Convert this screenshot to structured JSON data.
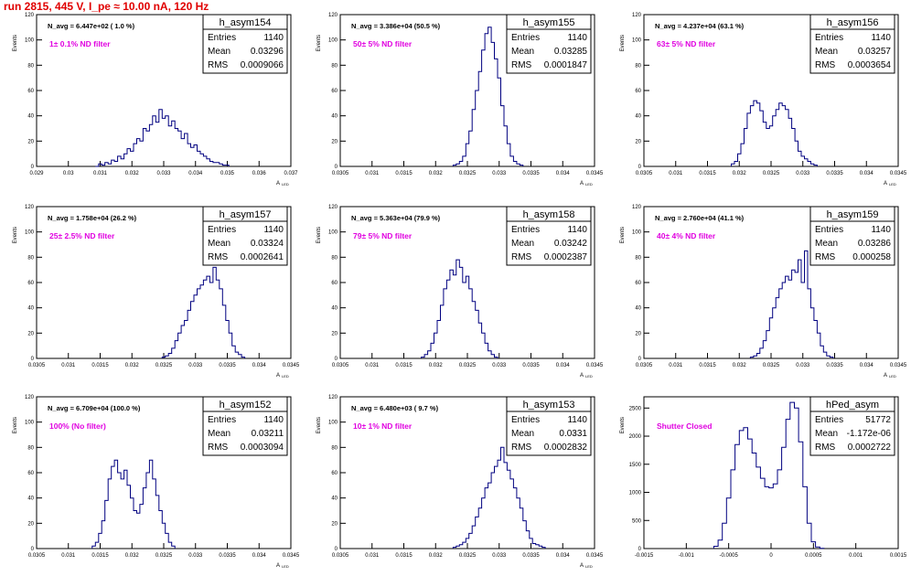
{
  "page_title": "run 2815,   445 V, I_pe ≈ 10.00 nA, 120 Hz",
  "y_axis_title": "Events",
  "stat_labels": {
    "entries": "Entries",
    "mean": "Mean",
    "rms": "RMS"
  },
  "colors": {
    "histogram": "#000080",
    "filter_text": "#e000e0",
    "title": "#e00000"
  },
  "chart_data": [
    {
      "type": "histogram",
      "name": "h_asym154",
      "navg": "N_avg = 6.447e+02 ( 1.0 %)",
      "filter_label": "1± 0.1% ND filter",
      "stats": {
        "entries": "1140",
        "mean": "0.03296",
        "rms": "0.0009066"
      },
      "xlabel": "A_LED",
      "xlim": [
        0.029,
        0.037
      ],
      "ylim": [
        0,
        120
      ],
      "xticks": [
        "0.029",
        "0.03",
        "0.031",
        "0.032",
        "0.033",
        "0.034",
        "0.035",
        "0.036",
        "0.037"
      ],
      "yticks": [
        "0",
        "20",
        "40",
        "60",
        "80",
        "100",
        "120"
      ],
      "x": [
        0.0309,
        0.031,
        0.0311,
        0.0312,
        0.0313,
        0.0314,
        0.0315,
        0.0316,
        0.0317,
        0.0318,
        0.0319,
        0.032,
        0.0321,
        0.0322,
        0.0323,
        0.0324,
        0.0325,
        0.0326,
        0.0327,
        0.0328,
        0.0329,
        0.033,
        0.0331,
        0.0332,
        0.0333,
        0.0334,
        0.0335,
        0.0336,
        0.0337,
        0.0338,
        0.0339,
        0.034,
        0.0341,
        0.0342,
        0.0343,
        0.0344,
        0.0345,
        0.0346,
        0.0347,
        0.0348,
        0.0349,
        0.035
      ],
      "values": [
        0,
        2,
        1,
        3,
        2,
        5,
        4,
        8,
        6,
        10,
        14,
        12,
        18,
        22,
        20,
        30,
        28,
        33,
        40,
        35,
        45,
        38,
        40,
        32,
        36,
        30,
        28,
        22,
        26,
        18,
        15,
        17,
        12,
        10,
        8,
        6,
        4,
        3,
        3,
        2,
        1,
        1
      ]
    },
    {
      "type": "histogram",
      "name": "h_asym155",
      "navg": "N_avg = 3.386e+04 (50.5 %)",
      "filter_label": "50± 5% ND filter",
      "stats": {
        "entries": "1140",
        "mean": "0.03285",
        "rms": "0.0001847"
      },
      "xlabel": "A_LED",
      "xlim": [
        0.0305,
        0.0345
      ],
      "ylim": [
        0,
        120
      ],
      "xticks": [
        "0.0305",
        "0.031",
        "0.0315",
        "0.032",
        "0.0325",
        "0.033",
        "0.0335",
        "0.034",
        "0.0345"
      ],
      "yticks": [
        "0",
        "20",
        "40",
        "60",
        "80",
        "100",
        "120"
      ],
      "x": [
        0.0323,
        0.03235,
        0.0324,
        0.03245,
        0.0325,
        0.03255,
        0.0326,
        0.03265,
        0.0327,
        0.03275,
        0.0328,
        0.03285,
        0.0329,
        0.03295,
        0.033,
        0.03305,
        0.0331,
        0.03315,
        0.0332,
        0.03325,
        0.0333,
        0.03335
      ],
      "values": [
        1,
        2,
        4,
        8,
        18,
        28,
        45,
        60,
        75,
        92,
        105,
        110,
        98,
        85,
        70,
        48,
        32,
        18,
        8,
        4,
        2,
        1
      ]
    },
    {
      "type": "histogram",
      "name": "h_asym156",
      "navg": "N_avg = 4.237e+04 (63.1 %)",
      "filter_label": "63± 5% ND filter",
      "stats": {
        "entries": "1140",
        "mean": "0.03257",
        "rms": "0.0003654"
      },
      "xlabel": "A_LED",
      "xlim": [
        0.0305,
        0.0345
      ],
      "ylim": [
        0,
        120
      ],
      "xticks": [
        "0.0305",
        "0.031",
        "0.0315",
        "0.032",
        "0.0325",
        "0.033",
        "0.0335",
        "0.034",
        "0.0345"
      ],
      "yticks": [
        "0",
        "20",
        "40",
        "60",
        "80",
        "100",
        "120"
      ],
      "x": [
        0.0319,
        0.03195,
        0.032,
        0.03205,
        0.0321,
        0.03215,
        0.0322,
        0.03225,
        0.0323,
        0.03235,
        0.0324,
        0.03245,
        0.0325,
        0.03255,
        0.0326,
        0.03265,
        0.0327,
        0.03275,
        0.0328,
        0.03285,
        0.0329,
        0.03295,
        0.033,
        0.03305,
        0.0331,
        0.03315,
        0.0332
      ],
      "values": [
        2,
        4,
        10,
        18,
        30,
        42,
        48,
        52,
        50,
        44,
        35,
        30,
        32,
        40,
        45,
        50,
        48,
        45,
        38,
        30,
        20,
        12,
        8,
        6,
        4,
        2,
        1
      ]
    },
    {
      "type": "histogram",
      "name": "h_asym157",
      "navg": "N_avg = 1.758e+04 (26.2 %)",
      "filter_label": "25± 2.5% ND filter",
      "stats": {
        "entries": "1140",
        "mean": "0.03324",
        "rms": "0.0002641"
      },
      "xlabel": "A_LED",
      "xlim": [
        0.0305,
        0.0345
      ],
      "ylim": [
        0,
        120
      ],
      "xticks": [
        "0.0305",
        "0.031",
        "0.0315",
        "0.032",
        "0.0325",
        "0.033",
        "0.0335",
        "0.034",
        "0.0345"
      ],
      "yticks": [
        "0",
        "20",
        "40",
        "60",
        "80",
        "100",
        "120"
      ],
      "x": [
        0.0325,
        0.03255,
        0.0326,
        0.03265,
        0.0327,
        0.03275,
        0.0328,
        0.03285,
        0.0329,
        0.03295,
        0.033,
        0.03305,
        0.0331,
        0.03315,
        0.0332,
        0.03325,
        0.0333,
        0.03335,
        0.0334,
        0.03345,
        0.0335,
        0.03355,
        0.0336,
        0.03365,
        0.0337,
        0.03375
      ],
      "values": [
        1,
        2,
        4,
        8,
        14,
        20,
        26,
        30,
        38,
        45,
        50,
        55,
        58,
        62,
        65,
        60,
        72,
        62,
        55,
        42,
        30,
        20,
        10,
        5,
        3,
        1
      ]
    },
    {
      "type": "histogram",
      "name": "h_asym158",
      "navg": "N_avg = 5.363e+04 (79.9 %)",
      "filter_label": "79± 5% ND filter",
      "stats": {
        "entries": "1140",
        "mean": "0.03242",
        "rms": "0.0002387"
      },
      "xlabel": "A_LED",
      "xlim": [
        0.0305,
        0.0345
      ],
      "ylim": [
        0,
        120
      ],
      "xticks": [
        "0.0305",
        "0.031",
        "0.0315",
        "0.032",
        "0.0325",
        "0.033",
        "0.0335",
        "0.034",
        "0.0345"
      ],
      "yticks": [
        "0",
        "20",
        "40",
        "60",
        "80",
        "100",
        "120"
      ],
      "x": [
        0.0318,
        0.03185,
        0.0319,
        0.03195,
        0.032,
        0.03205,
        0.0321,
        0.03215,
        0.0322,
        0.03225,
        0.0323,
        0.03235,
        0.0324,
        0.03245,
        0.0325,
        0.03255,
        0.0326,
        0.03265,
        0.0327,
        0.03275,
        0.0328,
        0.03285,
        0.0329,
        0.03295
      ],
      "values": [
        1,
        3,
        6,
        12,
        20,
        30,
        42,
        55,
        62,
        70,
        66,
        78,
        72,
        60,
        65,
        55,
        45,
        38,
        28,
        20,
        12,
        6,
        3,
        1
      ]
    },
    {
      "type": "histogram",
      "name": "h_asym159",
      "navg": "N_avg = 2.760e+04 (41.1 %)",
      "filter_label": "40± 4% ND filter",
      "stats": {
        "entries": "1140",
        "mean": "0.03286",
        "rms": "0.000258"
      },
      "xlabel": "A_LED",
      "xlim": [
        0.0305,
        0.0345
      ],
      "ylim": [
        0,
        120
      ],
      "xticks": [
        "0.0305",
        "0.031",
        "0.0315",
        "0.032",
        "0.0325",
        "0.033",
        "0.0335",
        "0.034",
        "0.0345"
      ],
      "yticks": [
        "0",
        "20",
        "40",
        "60",
        "80",
        "100",
        "120"
      ],
      "x": [
        0.0322,
        0.03225,
        0.0323,
        0.03235,
        0.0324,
        0.03245,
        0.0325,
        0.03255,
        0.0326,
        0.03265,
        0.0327,
        0.03275,
        0.0328,
        0.03285,
        0.0329,
        0.03295,
        0.033,
        0.03305,
        0.0331,
        0.03315,
        0.0332,
        0.03325,
        0.0333,
        0.03335,
        0.0334,
        0.03345
      ],
      "values": [
        1,
        2,
        4,
        8,
        14,
        22,
        32,
        40,
        48,
        55,
        60,
        65,
        62,
        70,
        68,
        78,
        60,
        85,
        55,
        40,
        30,
        20,
        10,
        5,
        2,
        1
      ]
    },
    {
      "type": "histogram",
      "name": "h_asym152",
      "navg": "N_avg = 6.709e+04 (100.0 %)",
      "filter_label": "100% (No filter)",
      "stats": {
        "entries": "1140",
        "mean": "0.03211",
        "rms": "0.0003094"
      },
      "xlabel": "A_LED",
      "xlim": [
        0.0305,
        0.0345
      ],
      "ylim": [
        0,
        120
      ],
      "xticks": [
        "0.0305",
        "0.031",
        "0.0315",
        "0.032",
        "0.0325",
        "0.033",
        "0.0335",
        "0.034",
        "0.0345"
      ],
      "yticks": [
        "0",
        "20",
        "40",
        "60",
        "80",
        "100",
        "120"
      ],
      "x": [
        0.0314,
        0.03145,
        0.0315,
        0.03155,
        0.0316,
        0.03165,
        0.0317,
        0.03175,
        0.0318,
        0.03185,
        0.0319,
        0.03195,
        0.032,
        0.03205,
        0.0321,
        0.03215,
        0.0322,
        0.03225,
        0.0323,
        0.03235,
        0.0324,
        0.03245,
        0.0325,
        0.03255,
        0.0326,
        0.03265
      ],
      "values": [
        2,
        5,
        12,
        22,
        38,
        55,
        65,
        70,
        60,
        55,
        62,
        50,
        40,
        30,
        28,
        35,
        48,
        60,
        70,
        55,
        42,
        30,
        20,
        12,
        5,
        2
      ]
    },
    {
      "type": "histogram",
      "name": "h_asym153",
      "navg": "N_avg = 6.480e+03 ( 9.7 %)",
      "filter_label": "10± 1% ND filter",
      "stats": {
        "entries": "1140",
        "mean": "0.0331",
        "rms": "0.0002832"
      },
      "xlabel": "A_LED",
      "xlim": [
        0.0305,
        0.0345
      ],
      "ylim": [
        0,
        120
      ],
      "xticks": [
        "0.0305",
        "0.031",
        "0.0315",
        "0.032",
        "0.0325",
        "0.033",
        "0.0335",
        "0.034",
        "0.0345"
      ],
      "yticks": [
        "0",
        "20",
        "40",
        "60",
        "80",
        "100",
        "120"
      ],
      "x": [
        0.0323,
        0.03235,
        0.0324,
        0.03245,
        0.0325,
        0.03255,
        0.0326,
        0.03265,
        0.0327,
        0.03275,
        0.0328,
        0.03285,
        0.0329,
        0.03295,
        0.033,
        0.03305,
        0.0331,
        0.03315,
        0.0332,
        0.03325,
        0.0333,
        0.03335,
        0.0334,
        0.03345,
        0.0335,
        0.03355,
        0.0336,
        0.03365,
        0.0337
      ],
      "values": [
        1,
        2,
        3,
        5,
        8,
        12,
        18,
        25,
        32,
        40,
        48,
        52,
        60,
        65,
        70,
        80,
        68,
        62,
        55,
        48,
        40,
        32,
        22,
        14,
        8,
        4,
        3,
        2,
        1
      ]
    },
    {
      "type": "histogram",
      "name": "hPed_asym",
      "navg": "",
      "filter_label": "Shutter Closed",
      "stats": {
        "entries": "51772",
        "mean": "-1.172e-06",
        "rms": "0.0002722"
      },
      "xlabel": "",
      "xlim": [
        -0.0015,
        0.0015
      ],
      "ylim": [
        0,
        2700
      ],
      "xticks": [
        "-0.0015",
        "-0.001",
        "-0.0005",
        "0",
        "0.0005",
        "0.001",
        "0.0015"
      ],
      "yticks": [
        "0",
        "500",
        "1000",
        "1500",
        "2000",
        "2500"
      ],
      "x": [
        -0.00065,
        -0.0006,
        -0.00055,
        -0.0005,
        -0.00045,
        -0.0004,
        -0.00035,
        -0.0003,
        -0.00025,
        -0.0002,
        -0.00015,
        -0.0001,
        -5e-05,
        0.0,
        5e-05,
        0.0001,
        0.00015,
        0.0002,
        0.00025,
        0.0003,
        0.00035,
        0.0004,
        0.00045,
        0.0005,
        0.00055,
        0.0006
      ],
      "values": [
        40,
        150,
        450,
        900,
        1400,
        1850,
        2100,
        2150,
        1950,
        1700,
        1450,
        1250,
        1100,
        1080,
        1150,
        1400,
        1800,
        2300,
        2600,
        2500,
        1900,
        1100,
        450,
        120,
        30,
        5
      ]
    }
  ]
}
